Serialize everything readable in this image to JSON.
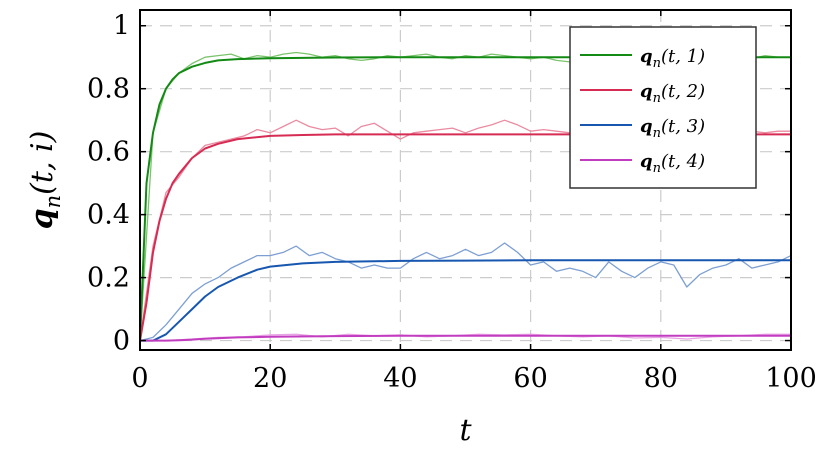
{
  "chart_data": {
    "type": "line",
    "xlabel": "t",
    "ylabel": "q_n(t, i)",
    "xlim": [
      0,
      100
    ],
    "ylim": [
      -0.03,
      1.05
    ],
    "xticks": [
      "0",
      "20",
      "40",
      "60",
      "80",
      "100"
    ],
    "yticks": [
      "0",
      "0.2",
      "0.4",
      "0.6",
      "0.8",
      "1"
    ],
    "grid": true,
    "legend_position": "top-right",
    "series": [
      {
        "name": "q_n(t, 1)",
        "color": "#138a13",
        "noisy_color": "#7cc36e",
        "x": [
          0,
          1,
          2,
          3,
          4,
          5,
          6,
          8,
          10,
          12,
          15,
          20,
          25,
          30,
          40,
          50,
          60,
          70,
          80,
          90,
          100
        ],
        "values": [
          0,
          0.5,
          0.66,
          0.75,
          0.8,
          0.83,
          0.85,
          0.87,
          0.882,
          0.89,
          0.894,
          0.897,
          0.898,
          0.899,
          0.9,
          0.9,
          0.9,
          0.9,
          0.9,
          0.9,
          0.9
        ],
        "noisy_x": [
          0,
          2,
          4,
          6,
          8,
          10,
          12,
          14,
          16,
          18,
          20,
          22,
          24,
          26,
          28,
          30,
          32,
          34,
          36,
          38,
          40,
          42,
          44,
          46,
          48,
          50,
          52,
          54,
          56,
          58,
          60,
          62,
          64,
          66,
          68,
          70,
          72,
          74,
          76,
          78,
          80,
          82,
          84,
          86,
          88,
          90,
          92,
          94,
          96,
          98,
          100
        ],
        "noisy_values": [
          0,
          0.66,
          0.8,
          0.85,
          0.88,
          0.9,
          0.905,
          0.91,
          0.895,
          0.905,
          0.9,
          0.91,
          0.915,
          0.91,
          0.9,
          0.905,
          0.895,
          0.89,
          0.895,
          0.905,
          0.9,
          0.905,
          0.91,
          0.9,
          0.895,
          0.905,
          0.9,
          0.91,
          0.905,
          0.9,
          0.895,
          0.9,
          0.89,
          0.885,
          0.895,
          0.9,
          0.895,
          0.905,
          0.9,
          0.905,
          0.895,
          0.9,
          0.905,
          0.9,
          0.895,
          0.905,
          0.9,
          0.895,
          0.905,
          0.9,
          0.9
        ]
      },
      {
        "name": "q_n(t, 2)",
        "color": "#d62b52",
        "noisy_color": "#eb8aa0",
        "x": [
          0,
          1,
          2,
          3,
          4,
          5,
          6,
          8,
          10,
          12,
          15,
          20,
          25,
          30,
          40,
          50,
          60,
          70,
          80,
          90,
          100
        ],
        "values": [
          0,
          0.12,
          0.28,
          0.38,
          0.45,
          0.5,
          0.53,
          0.58,
          0.61,
          0.625,
          0.64,
          0.65,
          0.653,
          0.655,
          0.655,
          0.655,
          0.655,
          0.655,
          0.655,
          0.655,
          0.655
        ],
        "noisy_x": [
          0,
          2,
          4,
          6,
          8,
          10,
          12,
          14,
          16,
          18,
          20,
          22,
          24,
          26,
          28,
          30,
          32,
          34,
          36,
          38,
          40,
          42,
          44,
          46,
          48,
          50,
          52,
          54,
          56,
          58,
          60,
          62,
          64,
          66,
          68,
          70,
          72,
          74,
          76,
          78,
          80,
          82,
          84,
          86,
          88,
          90,
          92,
          94,
          96,
          98,
          100
        ],
        "noisy_values": [
          0,
          0.3,
          0.47,
          0.52,
          0.58,
          0.62,
          0.63,
          0.64,
          0.65,
          0.67,
          0.66,
          0.68,
          0.7,
          0.68,
          0.67,
          0.675,
          0.65,
          0.68,
          0.69,
          0.665,
          0.64,
          0.66,
          0.665,
          0.67,
          0.675,
          0.66,
          0.675,
          0.685,
          0.7,
          0.685,
          0.665,
          0.67,
          0.665,
          0.66,
          0.65,
          0.66,
          0.67,
          0.655,
          0.66,
          0.66,
          0.645,
          0.65,
          0.645,
          0.65,
          0.64,
          0.655,
          0.66,
          0.665,
          0.66,
          0.665,
          0.665
        ]
      },
      {
        "name": "q_n(t, 3)",
        "color": "#1757b0",
        "noisy_color": "#7d9fd3",
        "x": [
          0,
          2,
          4,
          6,
          8,
          10,
          12,
          15,
          18,
          20,
          25,
          30,
          40,
          50,
          60,
          70,
          80,
          90,
          100
        ],
        "values": [
          0,
          0,
          0.02,
          0.06,
          0.1,
          0.14,
          0.17,
          0.2,
          0.225,
          0.235,
          0.245,
          0.25,
          0.253,
          0.254,
          0.255,
          0.255,
          0.255,
          0.255,
          0.255
        ],
        "noisy_x": [
          0,
          2,
          4,
          6,
          8,
          10,
          12,
          14,
          16,
          18,
          20,
          22,
          24,
          26,
          28,
          30,
          32,
          34,
          36,
          38,
          40,
          42,
          44,
          46,
          48,
          50,
          52,
          54,
          56,
          58,
          60,
          62,
          64,
          66,
          68,
          70,
          72,
          74,
          76,
          78,
          80,
          82,
          84,
          86,
          88,
          90,
          92,
          94,
          96,
          98,
          100
        ],
        "noisy_values": [
          0,
          0.01,
          0.05,
          0.1,
          0.15,
          0.18,
          0.2,
          0.23,
          0.25,
          0.27,
          0.27,
          0.28,
          0.3,
          0.27,
          0.28,
          0.26,
          0.25,
          0.23,
          0.24,
          0.23,
          0.23,
          0.26,
          0.28,
          0.26,
          0.27,
          0.29,
          0.27,
          0.28,
          0.31,
          0.28,
          0.24,
          0.25,
          0.22,
          0.23,
          0.22,
          0.2,
          0.25,
          0.22,
          0.2,
          0.23,
          0.25,
          0.24,
          0.17,
          0.21,
          0.23,
          0.24,
          0.26,
          0.23,
          0.24,
          0.25,
          0.27
        ]
      },
      {
        "name": "q_n(t, 4)",
        "color": "#c23cc0",
        "noisy_color": "#e8a3e4",
        "x": [
          0,
          2,
          4,
          6,
          8,
          10,
          15,
          20,
          30,
          40,
          50,
          60,
          70,
          80,
          90,
          100
        ],
        "values": [
          0,
          0,
          0,
          0.001,
          0.003,
          0.006,
          0.01,
          0.012,
          0.014,
          0.015,
          0.015,
          0.015,
          0.015,
          0.015,
          0.015,
          0.015
        ],
        "noisy_x": [
          0,
          4,
          8,
          12,
          16,
          20,
          24,
          28,
          32,
          36,
          40,
          44,
          48,
          52,
          56,
          60,
          64,
          68,
          72,
          76,
          80,
          84,
          88,
          92,
          96,
          100
        ],
        "noisy_values": [
          0,
          0,
          0.005,
          0.01,
          0.012,
          0.018,
          0.02,
          0.012,
          0.02,
          0.015,
          0.018,
          0.012,
          0.015,
          0.02,
          0.018,
          0.02,
          0.015,
          0.012,
          0.015,
          0.008,
          0.01,
          0.005,
          0.012,
          0.015,
          0.02,
          0.02
        ]
      }
    ]
  }
}
